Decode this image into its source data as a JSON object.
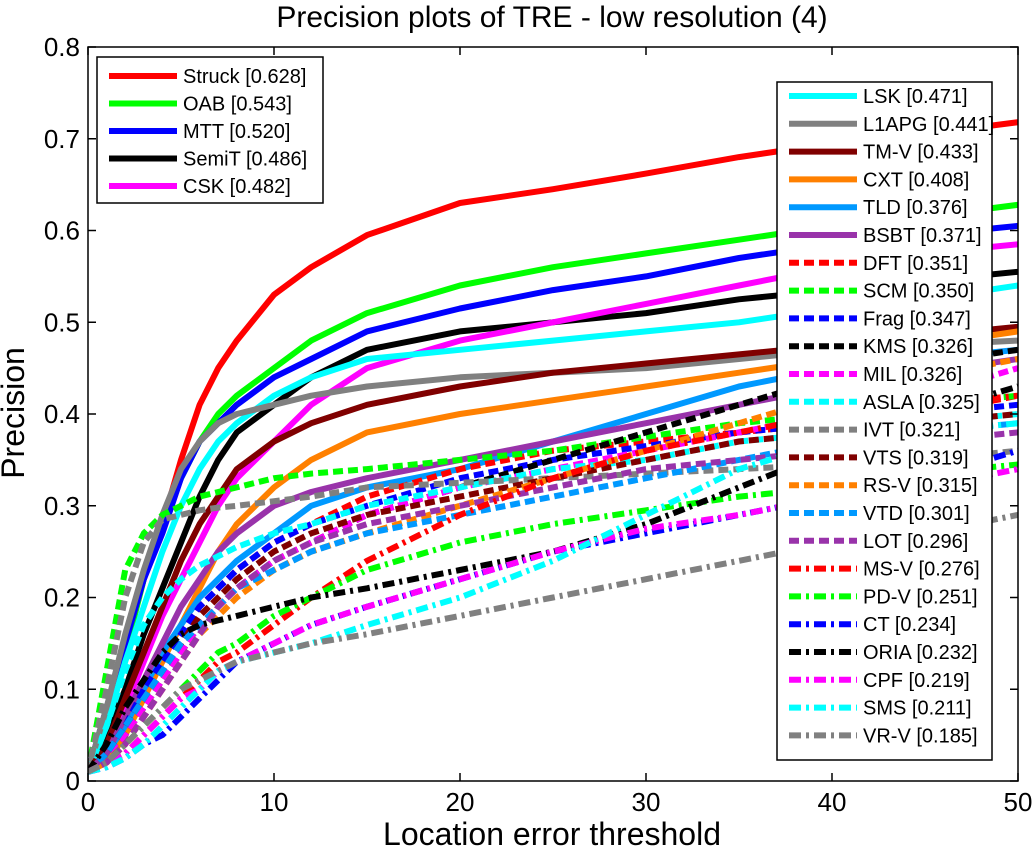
{
  "chart_data": {
    "type": "line",
    "title": "Precision plots of TRE - low resolution (4)",
    "xlabel": "Location error threshold",
    "ylabel": "Precision",
    "xlim": [
      0,
      50
    ],
    "ylim": [
      0,
      0.8
    ],
    "xticks": [
      "0",
      "10",
      "20",
      "30",
      "40",
      "50"
    ],
    "yticks": [
      "0",
      "0.1",
      "0.2",
      "0.3",
      "0.4",
      "0.5",
      "0.6",
      "0.7",
      "0.8"
    ],
    "legend_placement": [
      "top-left",
      "right"
    ],
    "x": [
      0,
      1,
      2,
      3,
      4,
      5,
      6,
      7,
      8,
      10,
      12,
      15,
      20,
      25,
      30,
      35,
      40,
      45,
      50
    ],
    "series": [
      {
        "name": "Struck [0.628]",
        "color": "#ff0000",
        "dash": "solid",
        "legend": "left",
        "values": [
          0.01,
          0.07,
          0.15,
          0.22,
          0.28,
          0.35,
          0.41,
          0.45,
          0.48,
          0.53,
          0.56,
          0.595,
          0.63,
          0.645,
          0.662,
          0.68,
          0.695,
          0.705,
          0.718
        ]
      },
      {
        "name": "OAB [0.543]",
        "color": "#00ff00",
        "dash": "solid",
        "legend": "left",
        "values": [
          0.01,
          0.07,
          0.14,
          0.22,
          0.28,
          0.33,
          0.37,
          0.4,
          0.42,
          0.45,
          0.48,
          0.51,
          0.54,
          0.56,
          0.575,
          0.59,
          0.605,
          0.615,
          0.628
        ]
      },
      {
        "name": "MTT [0.520]",
        "color": "#0000ff",
        "dash": "solid",
        "legend": "left",
        "values": [
          0.01,
          0.08,
          0.15,
          0.22,
          0.27,
          0.33,
          0.37,
          0.39,
          0.41,
          0.44,
          0.46,
          0.49,
          0.515,
          0.535,
          0.55,
          0.57,
          0.585,
          0.595,
          0.605
        ]
      },
      {
        "name": "SemiT [0.486]",
        "color": "#000000",
        "dash": "solid",
        "legend": "left",
        "values": [
          0.01,
          0.05,
          0.1,
          0.16,
          0.21,
          0.26,
          0.31,
          0.35,
          0.38,
          0.41,
          0.44,
          0.47,
          0.49,
          0.5,
          0.51,
          0.525,
          0.535,
          0.545,
          0.555
        ]
      },
      {
        "name": "CSK [0.482]",
        "color": "#ff00ff",
        "dash": "solid",
        "legend": "left",
        "values": [
          0.01,
          0.04,
          0.08,
          0.13,
          0.18,
          0.22,
          0.26,
          0.3,
          0.33,
          0.37,
          0.41,
          0.45,
          0.48,
          0.5,
          0.52,
          0.54,
          0.56,
          0.575,
          0.585
        ]
      },
      {
        "name": "LSK [0.471]",
        "color": "#00ffff",
        "dash": "solid",
        "legend": "right",
        "values": [
          0.01,
          0.06,
          0.13,
          0.19,
          0.25,
          0.3,
          0.34,
          0.37,
          0.39,
          0.42,
          0.44,
          0.46,
          0.47,
          0.48,
          0.49,
          0.5,
          0.515,
          0.525,
          0.54
        ]
      },
      {
        "name": "L1APG [0.441]",
        "color": "#808080",
        "dash": "solid",
        "legend": "right",
        "values": [
          0.01,
          0.08,
          0.16,
          0.23,
          0.29,
          0.34,
          0.37,
          0.39,
          0.4,
          0.41,
          0.42,
          0.43,
          0.44,
          0.445,
          0.45,
          0.46,
          0.47,
          0.475,
          0.48
        ]
      },
      {
        "name": "TM-V [0.433]",
        "color": "#800000",
        "dash": "solid",
        "legend": "right",
        "values": [
          0.01,
          0.04,
          0.09,
          0.14,
          0.19,
          0.24,
          0.28,
          0.31,
          0.34,
          0.37,
          0.39,
          0.41,
          0.43,
          0.445,
          0.455,
          0.465,
          0.475,
          0.485,
          0.495
        ]
      },
      {
        "name": "CXT [0.408]",
        "color": "#ff8000",
        "dash": "solid",
        "legend": "right",
        "values": [
          0.01,
          0.02,
          0.05,
          0.09,
          0.13,
          0.17,
          0.21,
          0.25,
          0.28,
          0.32,
          0.35,
          0.38,
          0.4,
          0.415,
          0.43,
          0.445,
          0.46,
          0.475,
          0.49
        ]
      },
      {
        "name": "TLD [0.376]",
        "color": "#0099ff",
        "dash": "solid",
        "legend": "right",
        "values": [
          0.01,
          0.03,
          0.06,
          0.1,
          0.14,
          0.17,
          0.2,
          0.22,
          0.24,
          0.27,
          0.3,
          0.32,
          0.34,
          0.37,
          0.4,
          0.43,
          0.45,
          0.46,
          0.47
        ]
      },
      {
        "name": "BSBT [0.371]",
        "color": "#9933aa",
        "dash": "solid",
        "legend": "right",
        "values": [
          0.01,
          0.03,
          0.07,
          0.11,
          0.15,
          0.19,
          0.22,
          0.25,
          0.27,
          0.3,
          0.315,
          0.33,
          0.35,
          0.37,
          0.39,
          0.41,
          0.43,
          0.445,
          0.46
        ]
      },
      {
        "name": "DFT [0.351]",
        "color": "#ff0000",
        "dash": "dash",
        "legend": "right",
        "values": [
          0.01,
          0.03,
          0.06,
          0.1,
          0.13,
          0.16,
          0.19,
          0.21,
          0.23,
          0.26,
          0.28,
          0.31,
          0.34,
          0.36,
          0.37,
          0.38,
          0.39,
          0.4,
          0.42
        ]
      },
      {
        "name": "SCM [0.350]",
        "color": "#00ff00",
        "dash": "dash",
        "legend": "right",
        "values": [
          0.01,
          0.12,
          0.23,
          0.27,
          0.29,
          0.3,
          0.31,
          0.315,
          0.32,
          0.33,
          0.335,
          0.34,
          0.35,
          0.36,
          0.375,
          0.39,
          0.4,
          0.41,
          0.42
        ]
      },
      {
        "name": "Frag [0.347]",
        "color": "#0000ff",
        "dash": "dash",
        "legend": "right",
        "values": [
          0.01,
          0.03,
          0.06,
          0.1,
          0.13,
          0.16,
          0.19,
          0.21,
          0.23,
          0.26,
          0.28,
          0.3,
          0.33,
          0.35,
          0.365,
          0.38,
          0.39,
          0.4,
          0.41
        ]
      },
      {
        "name": "KMS [0.326]",
        "color": "#000000",
        "dash": "dash",
        "legend": "right",
        "values": [
          0.01,
          0.03,
          0.05,
          0.08,
          0.11,
          0.14,
          0.17,
          0.19,
          0.21,
          0.24,
          0.26,
          0.29,
          0.32,
          0.35,
          0.38,
          0.41,
          0.44,
          0.455,
          0.47
        ]
      },
      {
        "name": "MIL [0.326]",
        "color": "#ff00ff",
        "dash": "dash",
        "legend": "right",
        "values": [
          0.01,
          0.03,
          0.05,
          0.08,
          0.11,
          0.14,
          0.17,
          0.19,
          0.21,
          0.24,
          0.26,
          0.29,
          0.32,
          0.34,
          0.36,
          0.38,
          0.4,
          0.42,
          0.45
        ]
      },
      {
        "name": "ASLA [0.325]",
        "color": "#00ffff",
        "dash": "dash",
        "legend": "right",
        "values": [
          0.01,
          0.06,
          0.12,
          0.17,
          0.2,
          0.22,
          0.235,
          0.245,
          0.255,
          0.27,
          0.28,
          0.3,
          0.32,
          0.34,
          0.35,
          0.37,
          0.38,
          0.39,
          0.4
        ]
      },
      {
        "name": "IVT [0.321]",
        "color": "#808080",
        "dash": "dash",
        "legend": "right",
        "values": [
          0.01,
          0.1,
          0.2,
          0.26,
          0.285,
          0.29,
          0.295,
          0.298,
          0.3,
          0.305,
          0.31,
          0.32,
          0.325,
          0.33,
          0.335,
          0.34,
          0.345,
          0.35,
          0.36
        ]
      },
      {
        "name": "VTS [0.319]",
        "color": "#800000",
        "dash": "dash",
        "legend": "right",
        "values": [
          0.01,
          0.03,
          0.06,
          0.09,
          0.12,
          0.15,
          0.18,
          0.2,
          0.22,
          0.25,
          0.27,
          0.29,
          0.31,
          0.33,
          0.35,
          0.37,
          0.38,
          0.39,
          0.4
        ]
      },
      {
        "name": "RS-V [0.315]",
        "color": "#ff8000",
        "dash": "dash",
        "legend": "right",
        "values": [
          0.01,
          0.02,
          0.04,
          0.07,
          0.1,
          0.13,
          0.16,
          0.18,
          0.2,
          0.23,
          0.25,
          0.27,
          0.3,
          0.33,
          0.36,
          0.39,
          0.42,
          0.44,
          0.46
        ]
      },
      {
        "name": "VTD [0.301]",
        "color": "#0099ff",
        "dash": "dash",
        "legend": "right",
        "values": [
          0.01,
          0.03,
          0.06,
          0.09,
          0.12,
          0.15,
          0.17,
          0.19,
          0.21,
          0.23,
          0.25,
          0.27,
          0.29,
          0.31,
          0.33,
          0.35,
          0.37,
          0.38,
          0.39
        ]
      },
      {
        "name": "LOT [0.296]",
        "color": "#9933aa",
        "dash": "dash",
        "legend": "right",
        "values": [
          0.01,
          0.02,
          0.04,
          0.07,
          0.1,
          0.13,
          0.16,
          0.19,
          0.21,
          0.24,
          0.26,
          0.28,
          0.3,
          0.32,
          0.34,
          0.35,
          0.36,
          0.37,
          0.38
        ]
      },
      {
        "name": "MS-V [0.276]",
        "color": "#ff0000",
        "dash": "dashdot",
        "legend": "right",
        "values": [
          0.01,
          0.02,
          0.03,
          0.05,
          0.07,
          0.09,
          0.11,
          0.13,
          0.14,
          0.17,
          0.2,
          0.24,
          0.29,
          0.33,
          0.36,
          0.38,
          0.4,
          0.41,
          0.42
        ]
      },
      {
        "name": "PD-V [0.251]",
        "color": "#00ff00",
        "dash": "dashdot",
        "legend": "right",
        "values": [
          0.01,
          0.02,
          0.04,
          0.06,
          0.08,
          0.1,
          0.12,
          0.14,
          0.15,
          0.18,
          0.2,
          0.23,
          0.26,
          0.28,
          0.295,
          0.31,
          0.32,
          0.335,
          0.345
        ]
      },
      {
        "name": "CT [0.234]",
        "color": "#0000ff",
        "dash": "dashdot",
        "legend": "right",
        "values": [
          0.01,
          0.015,
          0.025,
          0.04,
          0.05,
          0.07,
          0.09,
          0.11,
          0.13,
          0.15,
          0.17,
          0.19,
          0.22,
          0.25,
          0.27,
          0.29,
          0.31,
          0.33,
          0.36
        ]
      },
      {
        "name": "ORIA [0.232]",
        "color": "#000000",
        "dash": "dashdot",
        "legend": "right",
        "values": [
          0.01,
          0.04,
          0.08,
          0.11,
          0.14,
          0.16,
          0.17,
          0.175,
          0.18,
          0.19,
          0.2,
          0.21,
          0.23,
          0.25,
          0.28,
          0.32,
          0.36,
          0.4,
          0.43
        ]
      },
      {
        "name": "CPF [0.219]",
        "color": "#ff00ff",
        "dash": "dashdot",
        "legend": "right",
        "values": [
          0.01,
          0.02,
          0.03,
          0.05,
          0.07,
          0.09,
          0.1,
          0.12,
          0.13,
          0.15,
          0.17,
          0.19,
          0.22,
          0.25,
          0.275,
          0.29,
          0.31,
          0.32,
          0.34
        ]
      },
      {
        "name": "SMS [0.211]",
        "color": "#00ffff",
        "dash": "dashdot",
        "legend": "right",
        "values": [
          0.01,
          0.015,
          0.025,
          0.04,
          0.06,
          0.08,
          0.1,
          0.12,
          0.13,
          0.14,
          0.15,
          0.17,
          0.2,
          0.24,
          0.29,
          0.34,
          0.37,
          0.38,
          0.39
        ]
      },
      {
        "name": "VR-V [0.185]",
        "color": "#808080",
        "dash": "dashdot",
        "legend": "right",
        "values": [
          0.01,
          0.02,
          0.04,
          0.06,
          0.08,
          0.1,
          0.11,
          0.12,
          0.13,
          0.14,
          0.15,
          0.16,
          0.18,
          0.2,
          0.22,
          0.24,
          0.26,
          0.27,
          0.29
        ]
      }
    ]
  }
}
